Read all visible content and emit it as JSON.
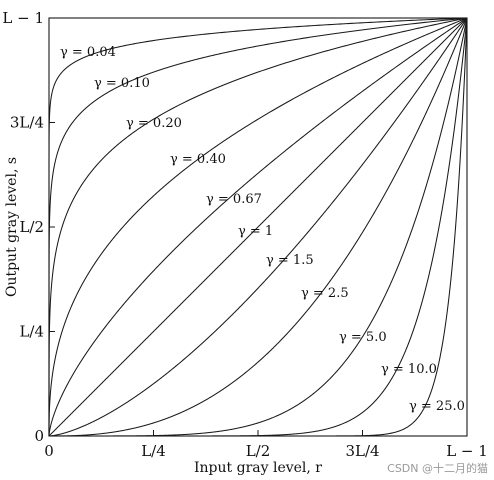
{
  "chart_data": {
    "type": "line",
    "title": "",
    "xlabel": "Input gray level, r",
    "ylabel": "Output gray level, s",
    "xlim": [
      0,
      1
    ],
    "ylim": [
      0,
      1
    ],
    "grid": false,
    "legend": "none",
    "x_ticks": [
      {
        "value": 0,
        "label": "0"
      },
      {
        "value": 0.25,
        "label": "L/4"
      },
      {
        "value": 0.5,
        "label": "L/2"
      },
      {
        "value": 0.75,
        "label": "3L/4"
      },
      {
        "value": 1,
        "label": "L − 1"
      }
    ],
    "y_ticks": [
      {
        "value": 0,
        "label": "0"
      },
      {
        "value": 0.25,
        "label": "L/4"
      },
      {
        "value": 0.5,
        "label": "L/2"
      },
      {
        "value": 0.75,
        "label": "3L/4"
      },
      {
        "value": 1,
        "label": "L − 1"
      }
    ],
    "series": [
      {
        "name": "γ = 0.04",
        "gamma": 0.04
      },
      {
        "name": "γ = 0.10",
        "gamma": 0.1
      },
      {
        "name": "γ = 0.20",
        "gamma": 0.2
      },
      {
        "name": "γ = 0.40",
        "gamma": 0.4
      },
      {
        "name": "γ = 0.67",
        "gamma": 0.67
      },
      {
        "name": "γ = 1",
        "gamma": 1
      },
      {
        "name": "γ = 1.5",
        "gamma": 1.5
      },
      {
        "name": "γ = 2.5",
        "gamma": 2.5
      },
      {
        "name": "γ = 5.0",
        "gamma": 5.0
      },
      {
        "name": "γ = 10.0",
        "gamma": 10.0
      },
      {
        "name": "γ = 25.0",
        "gamma": 25.0
      }
    ]
  },
  "watermark": "CSDN @十二月的猫",
  "colors": {
    "line": "#1a1a1a",
    "text": "#111111",
    "background": "#ffffff",
    "watermark": "#9a9a9a"
  }
}
